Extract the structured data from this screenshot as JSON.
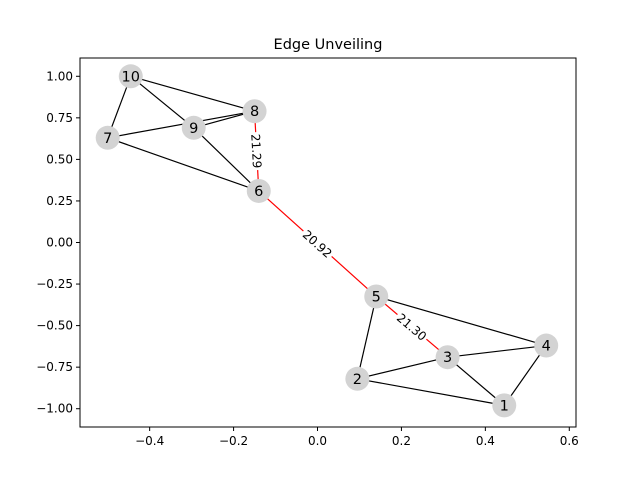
{
  "chart_data": {
    "type": "graph",
    "title": "Edge Unveiling",
    "xlabel": "",
    "ylabel": "",
    "xlim": [
      -0.566,
      0.616
    ],
    "ylim": [
      -1.11,
      1.11
    ],
    "x_ticks": [
      -0.4,
      -0.2,
      0.0,
      0.2,
      0.4,
      0.6
    ],
    "x_tick_labels": [
      "−0.4",
      "−0.2",
      "0.0",
      "0.2",
      "0.4",
      "0.6"
    ],
    "y_ticks": [
      1.0,
      0.75,
      0.5,
      0.25,
      0.0,
      -0.25,
      -0.5,
      -0.75,
      -1.0
    ],
    "y_tick_labels": [
      "1.00",
      "0.75",
      "0.50",
      "0.25",
      "0.00",
      "−0.25",
      "−0.50",
      "−0.75",
      "−1.00"
    ],
    "grid": false,
    "nodes": [
      {
        "id": "1",
        "x": 0.445,
        "y": -0.98
      },
      {
        "id": "2",
        "x": 0.095,
        "y": -0.82
      },
      {
        "id": "3",
        "x": 0.31,
        "y": -0.69
      },
      {
        "id": "4",
        "x": 0.545,
        "y": -0.62
      },
      {
        "id": "5",
        "x": 0.14,
        "y": -0.325
      },
      {
        "id": "6",
        "x": -0.14,
        "y": 0.31
      },
      {
        "id": "7",
        "x": -0.5,
        "y": 0.63
      },
      {
        "id": "8",
        "x": -0.15,
        "y": 0.79
      },
      {
        "id": "9",
        "x": -0.295,
        "y": 0.69
      },
      {
        "id": "10",
        "x": -0.445,
        "y": 1.0
      }
    ],
    "edges": [
      {
        "source": "10",
        "target": "8",
        "highlight": false,
        "label": ""
      },
      {
        "source": "10",
        "target": "9",
        "highlight": false,
        "label": ""
      },
      {
        "source": "10",
        "target": "7",
        "highlight": false,
        "label": ""
      },
      {
        "source": "7",
        "target": "8",
        "highlight": false,
        "label": ""
      },
      {
        "source": "7",
        "target": "6",
        "highlight": false,
        "label": ""
      },
      {
        "source": "9",
        "target": "8",
        "highlight": false,
        "label": ""
      },
      {
        "source": "9",
        "target": "6",
        "highlight": false,
        "label": ""
      },
      {
        "source": "8",
        "target": "6",
        "highlight": true,
        "label": "21.29"
      },
      {
        "source": "6",
        "target": "5",
        "highlight": true,
        "label": "20.92"
      },
      {
        "source": "5",
        "target": "3",
        "highlight": true,
        "label": "21.30"
      },
      {
        "source": "5",
        "target": "2",
        "highlight": false,
        "label": ""
      },
      {
        "source": "5",
        "target": "4",
        "highlight": false,
        "label": ""
      },
      {
        "source": "2",
        "target": "3",
        "highlight": false,
        "label": ""
      },
      {
        "source": "2",
        "target": "1",
        "highlight": false,
        "label": ""
      },
      {
        "source": "3",
        "target": "4",
        "highlight": false,
        "label": ""
      },
      {
        "source": "3",
        "target": "1",
        "highlight": false,
        "label": ""
      },
      {
        "source": "4",
        "target": "1",
        "highlight": false,
        "label": ""
      }
    ],
    "colors": {
      "node_fill": "#d3d3d3",
      "edge": "#000000",
      "edge_highlight": "#ff0000",
      "axes": "#000000",
      "background": "#ffffff"
    }
  }
}
